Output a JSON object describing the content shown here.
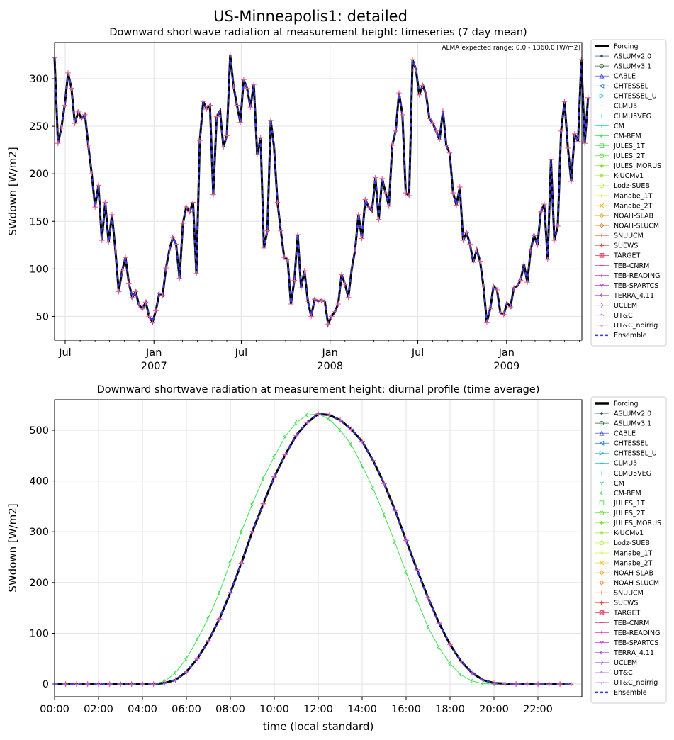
{
  "figure": {
    "title": "US-Minneapolis1: detailed"
  },
  "legend_entries": [
    {
      "name": "Forcing",
      "color": "#000000",
      "marker": "none",
      "style": "thick"
    },
    {
      "name": "ASLUMv2.0",
      "color": "#1f3a5f",
      "marker": "dot"
    },
    {
      "name": "ASLUMv3.1",
      "color": "#2e6b3f",
      "marker": "circle"
    },
    {
      "name": "CABLE",
      "color": "#3a3ad6",
      "marker": "triangle-up"
    },
    {
      "name": "CHTESSEL",
      "color": "#2a7fd4",
      "marker": "triangle-left"
    },
    {
      "name": "CHTESSEL_U",
      "color": "#1fb8e8",
      "marker": "triangle-right"
    },
    {
      "name": "CLMU5",
      "color": "#22c4d8",
      "marker": "hline"
    },
    {
      "name": "CLMU5VEG",
      "color": "#3fd9c4",
      "marker": "vline"
    },
    {
      "name": "CM",
      "color": "#2fd48f",
      "marker": "tri-down"
    },
    {
      "name": "CM-BEM",
      "color": "#33e04a",
      "marker": "caret-left"
    },
    {
      "name": "JULES_1T",
      "color": "#4fd84a",
      "marker": "square"
    },
    {
      "name": "JULES_2T",
      "color": "#66d93a",
      "marker": "octagon"
    },
    {
      "name": "JULES_MORUS",
      "color": "#7ee63a",
      "marker": "plus-filled"
    },
    {
      "name": "K-UCMv1",
      "color": "#9be63a",
      "marker": "star"
    },
    {
      "name": "Lodz-SUEB",
      "color": "#b8ee44",
      "marker": "hexagon"
    },
    {
      "name": "Manabe_1T",
      "color": "#e0ee3a",
      "marker": "plus"
    },
    {
      "name": "Manabe_2T",
      "color": "#f0c020",
      "marker": "x"
    },
    {
      "name": "NOAH-SLAB",
      "color": "#f0a020",
      "marker": "diamond"
    },
    {
      "name": "NOAH-SLUCM",
      "color": "#ee8030",
      "marker": "thin-diamond"
    },
    {
      "name": "SNUUCM",
      "color": "#ea6a3a",
      "marker": "vline"
    },
    {
      "name": "SUEWS",
      "color": "#ea4a3a",
      "marker": "plus-filled"
    },
    {
      "name": "TARGET",
      "color": "#e63a5a",
      "marker": "square-x"
    },
    {
      "name": "TEB-CNRM",
      "color": "#e03a8a",
      "marker": "hline"
    },
    {
      "name": "TEB-READING",
      "color": "#d83ac0",
      "marker": "vline"
    },
    {
      "name": "TEB-SPARTCS",
      "color": "#c83ae0",
      "marker": "tri-down"
    },
    {
      "name": "TERRA_4.11",
      "color": "#a83ae6",
      "marker": "caret-left"
    },
    {
      "name": "UCLEM",
      "color": "#b05ae8",
      "marker": "caret-right"
    },
    {
      "name": "UT&C",
      "color": "#c080ea",
      "marker": "caret-up"
    },
    {
      "name": "UT&C_noirrig",
      "color": "#d09af0",
      "marker": "caret-down"
    },
    {
      "name": "Ensemble",
      "color": "#3a3aee",
      "marker": "none",
      "style": "dashed"
    }
  ],
  "chart_data": [
    {
      "type": "line",
      "title": "Downward shortwave radiation at measurement height: timeseries (7 day mean)",
      "xlabel": "",
      "ylabel": "SWdown [W/m2]",
      "annotation": "ALMA expected range: 0.0 - 1360.0 [W/m2]",
      "x_axis": "date",
      "xlim": [
        "2006-06-09",
        "2009-06-06"
      ],
      "ylim": [
        25,
        338
      ],
      "yticks": [
        50,
        100,
        150,
        200,
        250,
        300
      ],
      "xticks": [
        {
          "date": "2006-07-01",
          "label": "Jul",
          "sub": ""
        },
        {
          "date": "2007-01-01",
          "label": "Jan",
          "sub": "2007"
        },
        {
          "date": "2007-07-01",
          "label": "Jul",
          "sub": ""
        },
        {
          "date": "2008-01-01",
          "label": "Jan",
          "sub": "2008"
        },
        {
          "date": "2008-07-01",
          "label": "Jul",
          "sub": ""
        },
        {
          "date": "2009-01-01",
          "label": "Jan",
          "sub": "2009"
        }
      ],
      "grid": true,
      "legend": "outside-right",
      "x_start": "2006-06-09",
      "x_step_days": 7,
      "series": [
        {
          "name": "Forcing",
          "values": [
            322,
            232,
            248,
            272,
            306,
            290,
            253,
            265,
            258,
            262,
            230,
            200,
            165,
            188,
            130,
            170,
            128,
            157,
            120,
            76,
            98,
            112,
            85,
            70,
            76,
            62,
            58,
            65,
            50,
            44,
            56,
            74,
            72,
            101,
            120,
            133,
            126,
            90,
            148,
            165,
            160,
            170,
            95,
            235,
            276,
            268,
            272,
            178,
            260,
            266,
            228,
            240,
            325,
            292,
            272,
            254,
            299,
            290,
            270,
            294,
            220,
            238,
            122,
            140,
            256,
            228,
            170,
            140,
            112,
            110,
            63,
            88,
            136,
            80,
            98,
            66,
            50,
            68,
            66,
            67,
            66,
            42,
            50,
            55,
            63,
            94,
            84,
            70,
            100,
            120,
            157,
            132,
            173,
            165,
            161,
            196,
            152,
            195,
            180,
            166,
            230,
            245,
            285,
            262,
            180,
            177,
            320,
            310,
            283,
            293,
            284,
            258,
            253,
            245,
            236,
            266,
            230,
            222,
            180,
            167,
            186,
            130,
            138,
            126,
            107,
            120,
            108,
            82,
            44,
            58,
            82,
            78,
            54,
            52,
            64,
            60,
            80,
            82,
            88,
            105,
            86,
            120,
            135,
            125,
            160,
            168,
            110,
            215,
            130,
            145,
            245,
            276,
            227,
            192,
            242,
            234,
            320,
            232,
            280
          ]
        }
      ]
    },
    {
      "type": "line",
      "title": "Downward shortwave radiation at measurement height: diurnal profile (time average)",
      "xlabel": "time (local standard)",
      "ylabel": "SWdown [W/m2]",
      "xlim": [
        0,
        24
      ],
      "ylim": [
        -25,
        560
      ],
      "yticks": [
        0,
        100,
        200,
        300,
        400,
        500
      ],
      "xticks": [
        0,
        2,
        4,
        6,
        8,
        10,
        12,
        14,
        16,
        18,
        20,
        22
      ],
      "xtick_labels": [
        "00:00",
        "02:00",
        "04:00",
        "06:00",
        "08:00",
        "10:00",
        "12:00",
        "14:00",
        "16:00",
        "18:00",
        "20:00",
        "22:00"
      ],
      "grid": true,
      "legend": "outside-right",
      "x": [
        0.0,
        0.5,
        1.0,
        1.5,
        2.0,
        2.5,
        3.0,
        3.5,
        4.0,
        4.5,
        5.0,
        5.5,
        6.0,
        6.5,
        7.0,
        7.5,
        8.0,
        8.5,
        9.0,
        9.5,
        10.0,
        10.5,
        11.0,
        11.5,
        12.0,
        12.5,
        13.0,
        13.5,
        14.0,
        14.5,
        15.0,
        15.5,
        16.0,
        16.5,
        17.0,
        17.5,
        18.0,
        18.5,
        19.0,
        19.5,
        20.0,
        20.5,
        21.0,
        21.5,
        22.0,
        22.5,
        23.0,
        23.5
      ],
      "series": [
        {
          "name": "Forcing",
          "values": [
            0,
            0,
            0,
            0,
            0,
            0,
            0,
            0,
            0,
            0,
            2,
            8,
            24,
            50,
            85,
            128,
            180,
            238,
            300,
            355,
            408,
            452,
            490,
            515,
            532,
            530,
            520,
            502,
            478,
            440,
            395,
            342,
            283,
            225,
            170,
            120,
            78,
            45,
            22,
            8,
            2,
            1,
            0,
            0,
            0,
            0,
            0,
            0
          ]
        },
        {
          "name": "CM-BEM",
          "values": [
            0,
            0,
            0,
            0,
            0,
            0,
            0,
            0,
            0,
            0,
            5,
            22,
            50,
            88,
            130,
            180,
            240,
            300,
            355,
            405,
            448,
            488,
            515,
            530,
            532,
            522,
            500,
            472,
            430,
            385,
            333,
            278,
            220,
            165,
            112,
            72,
            40,
            18,
            6,
            1,
            0,
            0,
            0,
            0,
            0,
            0,
            0,
            0
          ]
        },
        {
          "name": "Ensemble",
          "values": [
            0,
            0,
            0,
            0,
            0,
            0,
            0,
            0,
            0,
            0,
            2,
            8,
            24,
            50,
            85,
            128,
            180,
            238,
            300,
            355,
            408,
            452,
            490,
            515,
            532,
            530,
            520,
            502,
            478,
            440,
            395,
            342,
            283,
            225,
            170,
            120,
            78,
            45,
            22,
            8,
            2,
            1,
            0,
            0,
            0,
            0,
            0,
            0
          ]
        }
      ]
    }
  ]
}
